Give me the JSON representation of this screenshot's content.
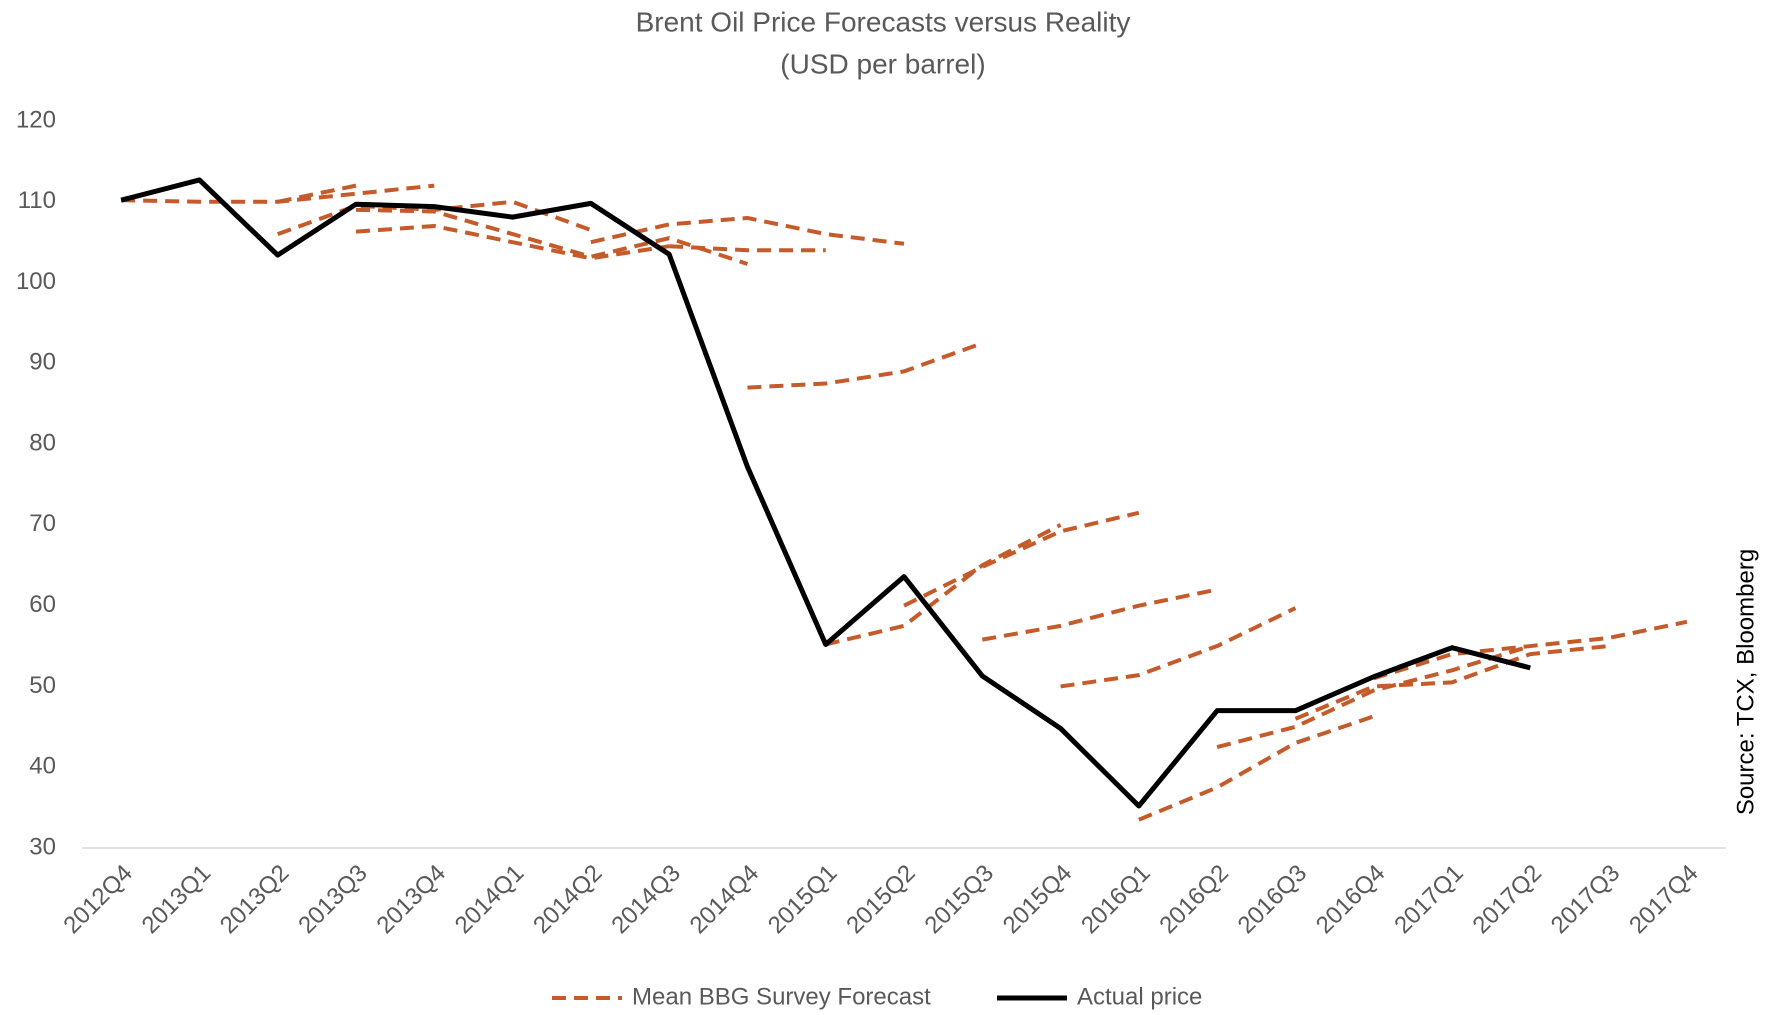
{
  "chart_data": {
    "type": "line",
    "title": "Brent Oil Price Forecasts versus Reality",
    "subtitle": "(USD per barrel)",
    "annotation": "Source: TCX, Bloomberg",
    "categories": [
      "2012Q4",
      "2013Q1",
      "2013Q2",
      "2013Q3",
      "2013Q4",
      "2014Q1",
      "2014Q2",
      "2014Q3",
      "2014Q4",
      "2015Q1",
      "2015Q2",
      "2015Q3",
      "2015Q4",
      "2016Q1",
      "2016Q2",
      "2016Q3",
      "2016Q4",
      "2017Q1",
      "2017Q2",
      "2017Q3",
      "2017Q4"
    ],
    "ylim": [
      30,
      120
    ],
    "yticks": [
      30,
      40,
      50,
      60,
      70,
      80,
      90,
      100,
      110,
      120
    ],
    "legend": "bottom",
    "series": [
      {
        "name": "Mean BBG Survey Forecast",
        "color": "#c55a2b",
        "dashed": true,
        "values": [
          110.2,
          110,
          110,
          111,
          112,
          null,
          null,
          null,
          null,
          null,
          null,
          null,
          null,
          null,
          null,
          null,
          null,
          null,
          null,
          null,
          null
        ]
      },
      {
        "color": "#c55a2b",
        "dashed": true,
        "values": [
          null,
          null,
          106,
          109.5,
          109,
          110,
          106.5,
          null,
          null,
          null,
          null,
          null,
          null,
          null,
          null,
          null,
          null,
          null,
          null,
          null,
          null
        ]
      },
      {
        "color": "#c55a2b",
        "dashed": true,
        "values": [
          null,
          null,
          110,
          112,
          null,
          null,
          null,
          null,
          null,
          null,
          null,
          null,
          null,
          null,
          null,
          null,
          null,
          null,
          null,
          null,
          null
        ]
      },
      {
        "color": "#c55a2b",
        "dashed": true,
        "values": [
          null,
          null,
          null,
          106.3,
          107,
          105,
          103,
          104.5,
          null,
          null,
          null,
          null,
          null,
          null,
          null,
          null,
          null,
          null,
          null,
          null,
          null
        ]
      },
      {
        "color": "#c55a2b",
        "dashed": true,
        "values": [
          null,
          null,
          null,
          109,
          108.8,
          106,
          103.2,
          105.5,
          102.3,
          null,
          null,
          null,
          null,
          null,
          null,
          null,
          null,
          null,
          null,
          null,
          null
        ]
      },
      {
        "color": "#c55a2b",
        "dashed": true,
        "values": [
          null,
          null,
          null,
          null,
          null,
          null,
          105,
          107.2,
          108,
          106,
          104.8,
          null,
          null,
          null,
          null,
          null,
          null,
          null,
          null,
          null,
          null
        ]
      },
      {
        "color": "#c55a2b",
        "dashed": true,
        "values": [
          null,
          null,
          null,
          null,
          null,
          null,
          null,
          104.5,
          104,
          104,
          null,
          null,
          null,
          null,
          null,
          null,
          null,
          null,
          null,
          null,
          null
        ]
      },
      {
        "color": "#c55a2b",
        "dashed": true,
        "values": [
          null,
          null,
          null,
          null,
          null,
          null,
          null,
          null,
          87,
          87.5,
          89,
          92.5,
          null,
          null,
          null,
          null,
          null,
          null,
          null,
          null,
          null
        ]
      },
      {
        "color": "#c55a2b",
        "dashed": true,
        "values": [
          null,
          null,
          null,
          null,
          null,
          null,
          null,
          null,
          null,
          55.2,
          57.5,
          65,
          70,
          null,
          null,
          null,
          null,
          null,
          null,
          null,
          null
        ]
      },
      {
        "color": "#c55a2b",
        "dashed": true,
        "values": [
          null,
          null,
          null,
          null,
          null,
          null,
          null,
          null,
          null,
          null,
          60,
          64.8,
          69.2,
          71.5,
          null,
          null,
          null,
          null,
          null,
          null,
          null
        ]
      },
      {
        "color": "#c55a2b",
        "dashed": true,
        "values": [
          null,
          null,
          null,
          null,
          null,
          null,
          null,
          null,
          null,
          null,
          null,
          55.8,
          57.5,
          60,
          62,
          null,
          null,
          null,
          null,
          null,
          null
        ]
      },
      {
        "color": "#c55a2b",
        "dashed": true,
        "values": [
          null,
          null,
          null,
          null,
          null,
          null,
          null,
          null,
          null,
          null,
          null,
          null,
          50,
          51.4,
          55,
          59.7,
          null,
          null,
          null,
          null,
          null
        ]
      },
      {
        "color": "#c55a2b",
        "dashed": true,
        "values": [
          null,
          null,
          null,
          null,
          null,
          null,
          null,
          null,
          null,
          null,
          null,
          null,
          null,
          33.5,
          37.5,
          43,
          46.3,
          null,
          null,
          null,
          null
        ]
      },
      {
        "color": "#c55a2b",
        "dashed": true,
        "values": [
          null,
          null,
          null,
          null,
          null,
          null,
          null,
          null,
          null,
          null,
          null,
          null,
          null,
          null,
          42.5,
          45,
          49.5,
          52,
          55,
          null,
          null
        ]
      },
      {
        "color": "#c55a2b",
        "dashed": true,
        "values": [
          null,
          null,
          null,
          null,
          null,
          null,
          null,
          null,
          null,
          null,
          null,
          null,
          null,
          null,
          null,
          46,
          50,
          50.5,
          54,
          55,
          null
        ]
      },
      {
        "color": "#c55a2b",
        "dashed": true,
        "values": [
          null,
          null,
          null,
          null,
          null,
          null,
          null,
          null,
          null,
          null,
          null,
          null,
          null,
          null,
          null,
          null,
          51,
          54,
          55,
          56,
          58
        ]
      },
      {
        "name": "Actual price",
        "color": "#000000",
        "dashed": false,
        "values": [
          110.2,
          112.7,
          103.4,
          109.7,
          109.4,
          108.1,
          109.8,
          103.5,
          77.2,
          55.2,
          63.6,
          51.3,
          44.8,
          35.2,
          47,
          47,
          51.2,
          54.8,
          52.3,
          null,
          null
        ]
      }
    ]
  }
}
